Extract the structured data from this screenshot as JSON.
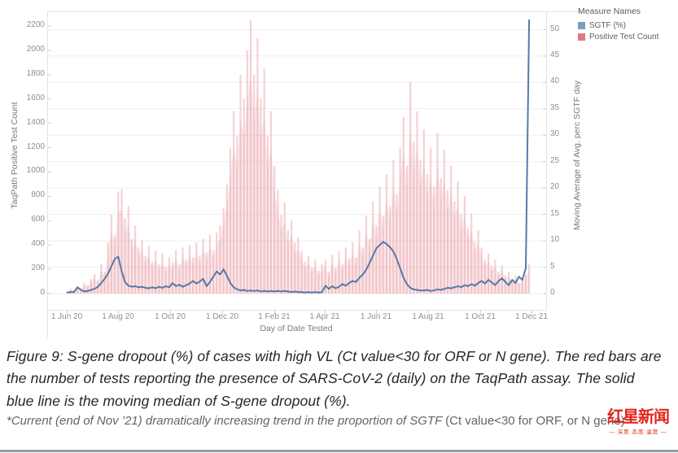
{
  "legend": {
    "title": "Measure Names",
    "items": [
      {
        "label": "SGTF (%)",
        "swatch": "#7b9cc6"
      },
      {
        "label": "Positive Test Count",
        "swatch": "#e0797f"
      }
    ]
  },
  "chart_data": {
    "type": "bar+line dual-axis",
    "title": "",
    "grid": "horizontal gridlines every 5 right-axis units, no vertical gridlines",
    "legend_position": "top-right",
    "x_axis": {
      "title": "Day of Date Tested",
      "start_date": "2020-06-01",
      "end_date": "2021-12-01",
      "tick_labels": [
        "1 Jun 20",
        "1 Aug 20",
        "1 Oct 20",
        "1 Dec 20",
        "1 Feb 21",
        "1 Apr 21",
        "1 Jun 21",
        "1 Aug 21",
        "1 Oct 21",
        "1 Dec 21"
      ],
      "tick_days": [
        0,
        61,
        122,
        183,
        245,
        304,
        365,
        426,
        487,
        548
      ]
    },
    "left_axis": {
      "title": "TaqPath Positive Test Count",
      "min": 0,
      "max": 2200,
      "tick_step": 200
    },
    "right_axis": {
      "title": "Moving Average of Avg. perc SGTF day",
      "min": 0,
      "max": 50,
      "tick_step": 5
    },
    "sample_interval_days": 4,
    "series": [
      {
        "name": "Positive Test Count",
        "type": "bar",
        "axis": "left",
        "color": "#e58e95",
        "values": [
          15,
          40,
          25,
          60,
          45,
          90,
          70,
          120,
          160,
          110,
          240,
          180,
          420,
          650,
          480,
          840,
          860,
          620,
          720,
          450,
          560,
          380,
          440,
          310,
          390,
          260,
          350,
          240,
          330,
          220,
          300,
          260,
          360,
          240,
          380,
          280,
          400,
          300,
          420,
          310,
          450,
          340,
          480,
          360,
          500,
          560,
          700,
          900,
          1200,
          1500,
          1300,
          1800,
          1600,
          2000,
          2250,
          1800,
          2100,
          1600,
          1850,
          1300,
          1500,
          1050,
          850,
          650,
          750,
          520,
          600,
          420,
          460,
          350,
          260,
          310,
          220,
          280,
          190,
          240,
          280,
          180,
          320,
          210,
          350,
          240,
          380,
          290,
          420,
          300,
          520,
          380,
          640,
          450,
          760,
          560,
          880,
          640,
          980,
          720,
          1100,
          820,
          1200,
          1450,
          1050,
          1740,
          1250,
          1500,
          1100,
          1350,
          980,
          1200,
          880,
          1320,
          950,
          1180,
          850,
          1050,
          760,
          920,
          650,
          800,
          540,
          660,
          430,
          520,
          380,
          280,
          330,
          230,
          280,
          180,
          230,
          150,
          180,
          110,
          150,
          90,
          130,
          160,
          240
        ]
      },
      {
        "name": "SGTF (%)",
        "type": "line",
        "axis": "right",
        "color": "#4d74a5",
        "values": [
          0.2,
          0.3,
          0.3,
          1.2,
          0.7,
          0.4,
          0.5,
          0.7,
          0.9,
          1.3,
          2.0,
          2.8,
          3.8,
          5.2,
          6.6,
          7.0,
          4.2,
          2.2,
          1.5,
          1.3,
          1.4,
          1.2,
          1.3,
          1.1,
          1.0,
          1.2,
          1.0,
          1.3,
          1.1,
          1.4,
          1.2,
          2.0,
          1.4,
          1.7,
          1.3,
          1.6,
          1.9,
          2.4,
          1.9,
          2.3,
          2.8,
          1.4,
          2.2,
          3.2,
          4.2,
          3.6,
          4.6,
          3.4,
          2.0,
          1.2,
          0.8,
          0.6,
          0.7,
          0.5,
          0.6,
          0.5,
          0.6,
          0.4,
          0.5,
          0.4,
          0.5,
          0.4,
          0.5,
          0.4,
          0.5,
          0.4,
          0.3,
          0.4,
          0.3,
          0.3,
          0.2,
          0.3,
          0.2,
          0.3,
          0.2,
          0.3,
          1.5,
          0.9,
          1.4,
          1.0,
          1.3,
          1.8,
          1.5,
          2.0,
          2.4,
          2.2,
          3.0,
          3.6,
          4.5,
          5.8,
          7.2,
          8.6,
          9.2,
          9.8,
          9.4,
          8.8,
          8.0,
          6.6,
          4.8,
          3.0,
          1.8,
          1.1,
          0.8,
          0.7,
          0.6,
          0.6,
          0.7,
          0.5,
          0.6,
          0.8,
          0.7,
          0.9,
          1.1,
          1.0,
          1.2,
          1.4,
          1.2,
          1.6,
          1.4,
          1.8,
          1.5,
          2.0,
          2.4,
          1.9,
          2.6,
          2.1,
          1.6,
          2.4,
          2.9,
          2.2,
          1.6,
          2.6,
          2.0,
          3.2,
          2.6,
          4.8,
          51.8
        ]
      }
    ]
  },
  "caption": {
    "text": "Figure 9: S-gene dropout (%) of cases with high VL (Ct value<30 for ORF or N gene). The red bars are the number of tests reporting the presence of SARS-CoV-2 (daily) on the TaqPath assay. The solid blue line is the moving median of S-gene dropout (%)."
  },
  "footnote": {
    "main": "*Current (end of Nov ’21) dramatically increasing trend in the proportion of SGTF ",
    "tail": "(Ct value<30 for ORF, or N gene)"
  },
  "logo": {
    "name": "红星新闻",
    "tagline": "— 深度 态度 温度 —"
  }
}
